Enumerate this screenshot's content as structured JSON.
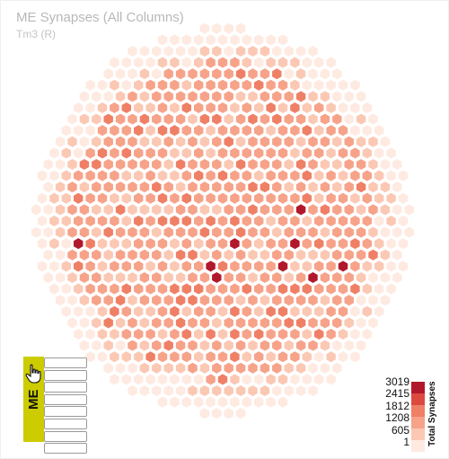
{
  "chart_data": {
    "type": "heatmap",
    "title": "ME Synapses (All Columns)",
    "subtitle": "Tm3 (R)",
    "layout": "hexagonal grid of columns",
    "colorbar": {
      "title": "Total Synapses",
      "ticks": [
        "3019",
        "2415",
        "1812",
        "1208",
        "605",
        "1"
      ],
      "colors": [
        "#b2182b",
        "#dc4a3f",
        "#ef8066",
        "#f6a38a",
        "#fbc8b4",
        "#feeae1"
      ]
    },
    "range": [
      1,
      3019
    ]
  },
  "selector": {
    "label": "ME",
    "rows": 8
  }
}
